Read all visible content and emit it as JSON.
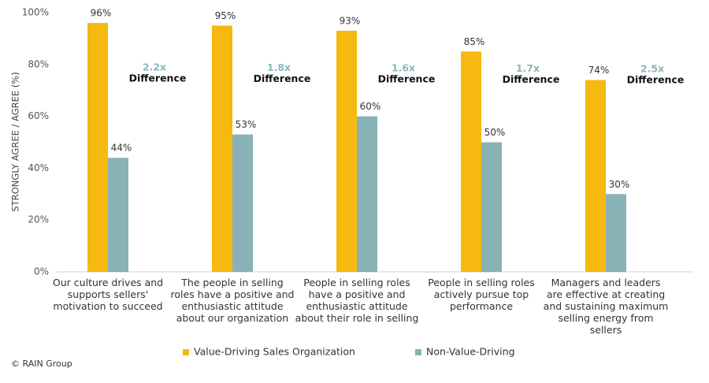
{
  "chart_data": {
    "type": "bar",
    "y_label": "STRONGLY AGREE / AGREE (%)",
    "categories": [
      "Our culture drives and supports sellers' motivation to succeed",
      "The people in selling roles have a positive and enthusiastic attitude about our organization",
      "People in selling roles have a positive and enthusiastic attitude about their role in selling",
      "People in selling roles actively pursue top performance",
      "Managers and leaders are effective at creating and sustaining maximum selling energy from sellers"
    ],
    "series": [
      {
        "name": "Value-Driving Sales Organization",
        "color": "#f5b90f",
        "values": [
          96,
          95,
          93,
          85,
          74
        ],
        "value_labels": [
          "96%",
          "95%",
          "93%",
          "85%",
          "74%"
        ]
      },
      {
        "name": "Non-Value-Driving",
        "color": "#88b2b6",
        "values": [
          44,
          53,
          60,
          50,
          30
        ],
        "value_labels": [
          "44%",
          "53%",
          "60%",
          "50%",
          "30%"
        ]
      }
    ],
    "annotations": [
      {
        "ratio": "2.2x",
        "label": "Difference"
      },
      {
        "ratio": "1.8x",
        "label": "Difference"
      },
      {
        "ratio": "1.6x",
        "label": "Difference"
      },
      {
        "ratio": "1.7x",
        "label": "Difference"
      },
      {
        "ratio": "2.5x",
        "label": "Difference"
      }
    ],
    "ylim": [
      0,
      100
    ],
    "yticks": [
      {
        "value": 0,
        "label": "0%"
      },
      {
        "value": 20,
        "label": "20%"
      },
      {
        "value": 40,
        "label": "40%"
      },
      {
        "value": 60,
        "label": "60%"
      },
      {
        "value": 80,
        "label": "80%"
      },
      {
        "value": 100,
        "label": "100%"
      }
    ],
    "grid": false,
    "legend": "bottom",
    "footer": "© RAIN Group"
  }
}
